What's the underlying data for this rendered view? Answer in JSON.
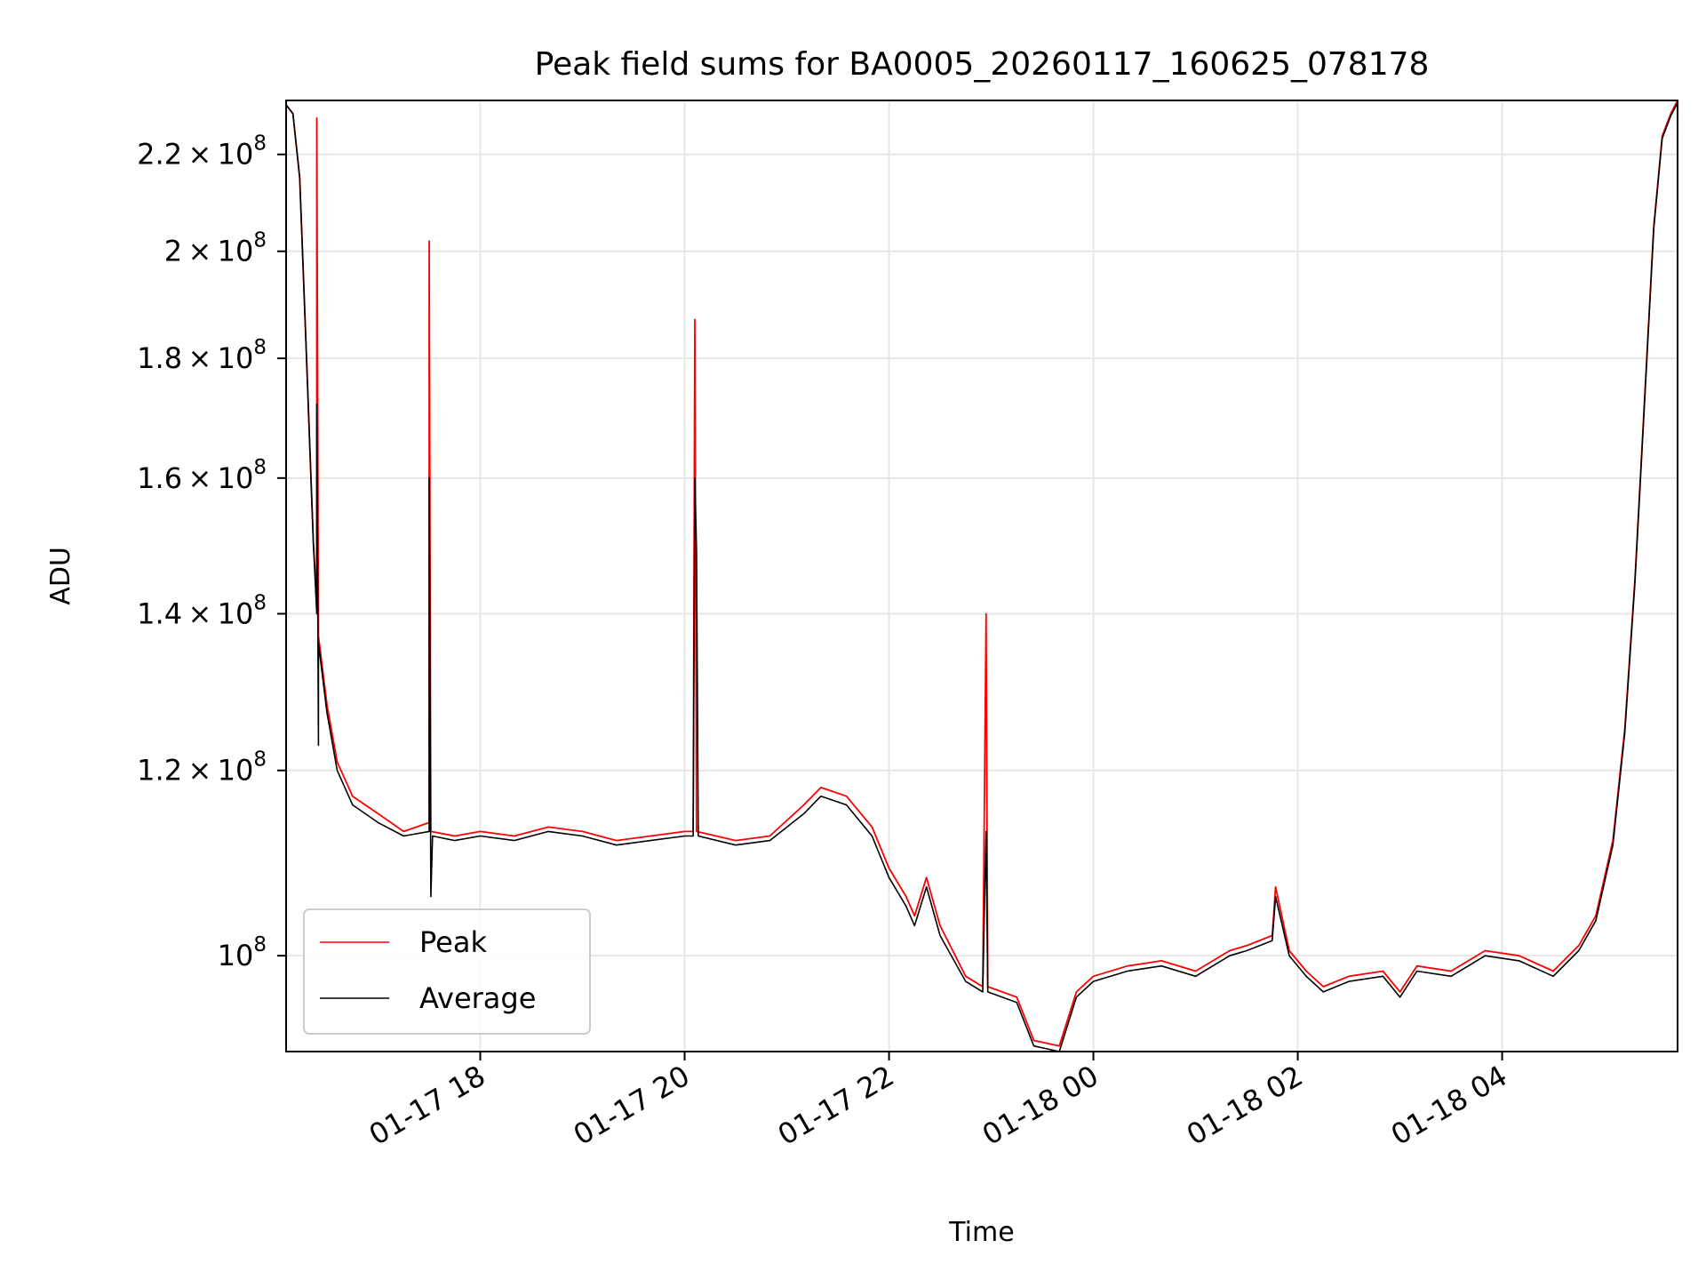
{
  "chart_data": {
    "type": "line",
    "title": "Peak field sums for BA0005_20260117_160625_078178",
    "xlabel": "Time",
    "ylabel": "ADU",
    "yscale": "log",
    "ylim": [
      91000000,
      232000000
    ],
    "xlim": [
      "2026-01-17 16:06",
      "2026-01-18 05:43"
    ],
    "grid": true,
    "legend_position": "lower-left",
    "x_ticks": [
      {
        "value": "2026-01-17 18:00",
        "label": "01-17 18"
      },
      {
        "value": "2026-01-17 20:00",
        "label": "01-17 20"
      },
      {
        "value": "2026-01-17 22:00",
        "label": "01-17 22"
      },
      {
        "value": "2026-01-18 00:00",
        "label": "01-18 00"
      },
      {
        "value": "2026-01-18 02:00",
        "label": "01-18 02"
      },
      {
        "value": "2026-01-18 04:00",
        "label": "01-18 04"
      }
    ],
    "y_ticks": [
      {
        "value": 100000000,
        "mantissa": "",
        "exponent": "8"
      },
      {
        "value": 120000000,
        "mantissa": "1.2",
        "exponent": "8"
      },
      {
        "value": 140000000,
        "mantissa": "1.4",
        "exponent": "8"
      },
      {
        "value": 160000000,
        "mantissa": "1.6",
        "exponent": "8"
      },
      {
        "value": 180000000,
        "mantissa": "1.8",
        "exponent": "8"
      },
      {
        "value": 200000000,
        "mantissa": "2",
        "exponent": "8"
      },
      {
        "value": 220000000,
        "mantissa": "2.2",
        "exponent": "8"
      }
    ],
    "series": [
      {
        "name": "Peak",
        "color": "#ff0000",
        "points": [
          [
            "2026-01-17 16:06",
            231000000
          ],
          [
            "2026-01-17 16:10",
            229000000
          ],
          [
            "2026-01-17 16:14",
            215000000
          ],
          [
            "2026-01-17 16:18",
            180000000
          ],
          [
            "2026-01-17 16:22",
            150000000
          ],
          [
            "2026-01-17 16:24",
            142000000
          ],
          [
            "2026-01-17 16:24",
            228000000
          ],
          [
            "2026-01-17 16:25",
            137000000
          ],
          [
            "2026-01-17 16:30",
            128000000
          ],
          [
            "2026-01-17 16:36",
            121000000
          ],
          [
            "2026-01-17 16:45",
            117000000
          ],
          [
            "2026-01-17 17:00",
            115000000
          ],
          [
            "2026-01-17 17:15",
            113000000
          ],
          [
            "2026-01-17 17:30",
            114000000
          ],
          [
            "2026-01-17 17:30",
            202000000
          ],
          [
            "2026-01-17 17:31",
            113000000
          ],
          [
            "2026-01-17 17:45",
            112500000
          ],
          [
            "2026-01-17 18:00",
            113000000
          ],
          [
            "2026-01-17 18:20",
            112500000
          ],
          [
            "2026-01-17 18:40",
            113500000
          ],
          [
            "2026-01-17 19:00",
            113000000
          ],
          [
            "2026-01-17 19:20",
            112000000
          ],
          [
            "2026-01-17 19:40",
            112500000
          ],
          [
            "2026-01-17 20:00",
            113000000
          ],
          [
            "2026-01-17 20:05",
            113000000
          ],
          [
            "2026-01-17 20:06",
            187000000
          ],
          [
            "2026-01-17 20:07",
            113000000
          ],
          [
            "2026-01-17 20:30",
            112000000
          ],
          [
            "2026-01-17 20:50",
            112500000
          ],
          [
            "2026-01-17 21:10",
            116000000
          ],
          [
            "2026-01-17 21:20",
            118000000
          ],
          [
            "2026-01-17 21:35",
            117000000
          ],
          [
            "2026-01-17 21:50",
            113500000
          ],
          [
            "2026-01-17 22:00",
            109000000
          ],
          [
            "2026-01-17 22:10",
            106000000
          ],
          [
            "2026-01-17 22:15",
            104000000
          ],
          [
            "2026-01-17 22:22",
            108000000
          ],
          [
            "2026-01-17 22:30",
            103000000
          ],
          [
            "2026-01-17 22:45",
            98000000
          ],
          [
            "2026-01-17 22:55",
            97000000
          ],
          [
            "2026-01-17 22:57",
            140000000
          ],
          [
            "2026-01-17 22:58",
            97000000
          ],
          [
            "2026-01-17 23:15",
            96000000
          ],
          [
            "2026-01-17 23:25",
            92000000
          ],
          [
            "2026-01-17 23:40",
            91500000
          ],
          [
            "2026-01-17 23:50",
            96500000
          ],
          [
            "2026-01-18 00:00",
            98000000
          ],
          [
            "2026-01-18 00:20",
            99000000
          ],
          [
            "2026-01-18 00:40",
            99500000
          ],
          [
            "2026-01-18 01:00",
            98500000
          ],
          [
            "2026-01-18 01:20",
            100500000
          ],
          [
            "2026-01-18 01:30",
            101000000
          ],
          [
            "2026-01-18 01:45",
            102000000
          ],
          [
            "2026-01-18 01:47",
            107000000
          ],
          [
            "2026-01-18 01:55",
            100500000
          ],
          [
            "2026-01-18 02:05",
            98500000
          ],
          [
            "2026-01-18 02:15",
            97000000
          ],
          [
            "2026-01-18 02:30",
            98000000
          ],
          [
            "2026-01-18 02:50",
            98500000
          ],
          [
            "2026-01-18 03:00",
            96500000
          ],
          [
            "2026-01-18 03:10",
            99000000
          ],
          [
            "2026-01-18 03:30",
            98500000
          ],
          [
            "2026-01-18 03:50",
            100500000
          ],
          [
            "2026-01-18 04:10",
            100000000
          ],
          [
            "2026-01-18 04:30",
            98500000
          ],
          [
            "2026-01-18 04:45",
            101000000
          ],
          [
            "2026-01-18 04:55",
            104000000
          ],
          [
            "2026-01-18 05:05",
            112000000
          ],
          [
            "2026-01-18 05:12",
            125000000
          ],
          [
            "2026-01-18 05:18",
            145000000
          ],
          [
            "2026-01-18 05:24",
            175000000
          ],
          [
            "2026-01-18 05:29",
            205000000
          ],
          [
            "2026-01-18 05:34",
            224000000
          ],
          [
            "2026-01-18 05:39",
            229000000
          ],
          [
            "2026-01-18 05:43",
            232000000
          ]
        ]
      },
      {
        "name": "Average",
        "color": "#000000",
        "points": [
          [
            "2026-01-17 16:06",
            231000000
          ],
          [
            "2026-01-17 16:10",
            229000000
          ],
          [
            "2026-01-17 16:14",
            215000000
          ],
          [
            "2026-01-17 16:18",
            180000000
          ],
          [
            "2026-01-17 16:22",
            150000000
          ],
          [
            "2026-01-17 16:24",
            140000000
          ],
          [
            "2026-01-17 16:24",
            172000000
          ],
          [
            "2026-01-17 16:25",
            123000000
          ],
          [
            "2026-01-17 16:25",
            136000000
          ],
          [
            "2026-01-17 16:30",
            127000000
          ],
          [
            "2026-01-17 16:36",
            120000000
          ],
          [
            "2026-01-17 16:45",
            116000000
          ],
          [
            "2026-01-17 17:00",
            114000000
          ],
          [
            "2026-01-17 17:15",
            112500000
          ],
          [
            "2026-01-17 17:30",
            113000000
          ],
          [
            "2026-01-17 17:30",
            160000000
          ],
          [
            "2026-01-17 17:31",
            106000000
          ],
          [
            "2026-01-17 17:32",
            112500000
          ],
          [
            "2026-01-17 17:45",
            112000000
          ],
          [
            "2026-01-17 18:00",
            112500000
          ],
          [
            "2026-01-17 18:20",
            112000000
          ],
          [
            "2026-01-17 18:40",
            113000000
          ],
          [
            "2026-01-17 19:00",
            112500000
          ],
          [
            "2026-01-17 19:20",
            111500000
          ],
          [
            "2026-01-17 19:40",
            112000000
          ],
          [
            "2026-01-17 20:00",
            112500000
          ],
          [
            "2026-01-17 20:05",
            112500000
          ],
          [
            "2026-01-17 20:06",
            160000000
          ],
          [
            "2026-01-17 20:07",
            149000000
          ],
          [
            "2026-01-17 20:08",
            112500000
          ],
          [
            "2026-01-17 20:30",
            111500000
          ],
          [
            "2026-01-17 20:50",
            112000000
          ],
          [
            "2026-01-17 21:10",
            115000000
          ],
          [
            "2026-01-17 21:20",
            117000000
          ],
          [
            "2026-01-17 21:35",
            116000000
          ],
          [
            "2026-01-17 21:50",
            112500000
          ],
          [
            "2026-01-17 22:00",
            108000000
          ],
          [
            "2026-01-17 22:10",
            105000000
          ],
          [
            "2026-01-17 22:15",
            103000000
          ],
          [
            "2026-01-17 22:22",
            107000000
          ],
          [
            "2026-01-17 22:30",
            102000000
          ],
          [
            "2026-01-17 22:45",
            97500000
          ],
          [
            "2026-01-17 22:55",
            96500000
          ],
          [
            "2026-01-17 22:57",
            113000000
          ],
          [
            "2026-01-17 22:58",
            96500000
          ],
          [
            "2026-01-17 23:15",
            95500000
          ],
          [
            "2026-01-17 23:25",
            91500000
          ],
          [
            "2026-01-17 23:40",
            91000000
          ],
          [
            "2026-01-17 23:50",
            96000000
          ],
          [
            "2026-01-18 00:00",
            97500000
          ],
          [
            "2026-01-18 00:20",
            98500000
          ],
          [
            "2026-01-18 00:40",
            99000000
          ],
          [
            "2026-01-18 01:00",
            98000000
          ],
          [
            "2026-01-18 01:20",
            100000000
          ],
          [
            "2026-01-18 01:30",
            100500000
          ],
          [
            "2026-01-18 01:45",
            101500000
          ],
          [
            "2026-01-18 01:47",
            106000000
          ],
          [
            "2026-01-18 01:55",
            100000000
          ],
          [
            "2026-01-18 02:05",
            98000000
          ],
          [
            "2026-01-18 02:15",
            96500000
          ],
          [
            "2026-01-18 02:30",
            97500000
          ],
          [
            "2026-01-18 02:50",
            98000000
          ],
          [
            "2026-01-18 03:00",
            96000000
          ],
          [
            "2026-01-18 03:10",
            98500000
          ],
          [
            "2026-01-18 03:30",
            98000000
          ],
          [
            "2026-01-18 03:50",
            100000000
          ],
          [
            "2026-01-18 04:10",
            99500000
          ],
          [
            "2026-01-18 04:30",
            98000000
          ],
          [
            "2026-01-18 04:45",
            100500000
          ],
          [
            "2026-01-18 04:55",
            103500000
          ],
          [
            "2026-01-18 05:05",
            111500000
          ],
          [
            "2026-01-18 05:12",
            124500000
          ],
          [
            "2026-01-18 05:18",
            144500000
          ],
          [
            "2026-01-18 05:24",
            174500000
          ],
          [
            "2026-01-18 05:29",
            204500000
          ],
          [
            "2026-01-18 05:34",
            223500000
          ],
          [
            "2026-01-18 05:39",
            228500000
          ],
          [
            "2026-01-18 05:43",
            231500000
          ]
        ]
      }
    ]
  }
}
